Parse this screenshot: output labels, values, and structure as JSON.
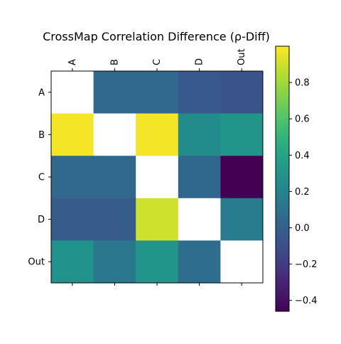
{
  "chart_data": {
    "type": "heatmap",
    "title": "CrossMap Correlation Difference (ρ-Diff)",
    "x_categories": [
      "A",
      "B",
      "C",
      "D",
      "Out"
    ],
    "y_categories": [
      "A",
      "B",
      "C",
      "D",
      "Out"
    ],
    "x_tick_position": "top",
    "colormap": "viridis",
    "missing_value_color": "#ffffff",
    "values": [
      [
        null,
        0.05,
        0.05,
        -0.05,
        -0.08
      ],
      [
        0.98,
        null,
        0.98,
        0.25,
        0.3
      ],
      [
        0.05,
        0.05,
        null,
        0.04,
        -0.46
      ],
      [
        -0.03,
        -0.03,
        0.9,
        null,
        0.15
      ],
      [
        0.28,
        0.13,
        0.3,
        0.07,
        null
      ]
    ],
    "colorbar": {
      "vmin": -0.46,
      "vmax": 1.0,
      "ticks": [
        -0.4,
        -0.2,
        0.0,
        0.2,
        0.4,
        0.6,
        0.8
      ],
      "tick_labels": [
        "−0.4",
        "−0.2",
        "0.0",
        "0.2",
        "0.4",
        "0.6",
        "0.8"
      ]
    },
    "grid": false
  }
}
